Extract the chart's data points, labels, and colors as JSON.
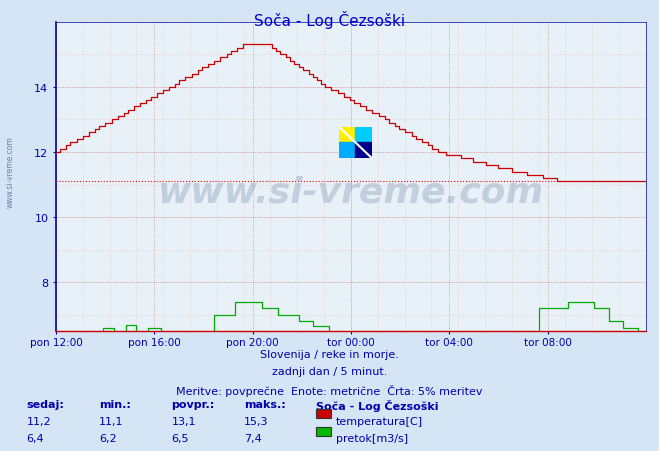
{
  "title": "Soča - Log Čezsoški",
  "background_color": "#d5e5f5",
  "plot_bg_color": "#e8f0f8",
  "title_color": "#0000cc",
  "axis_color": "#0000aa",
  "temp_color": "#cc0000",
  "flow_color": "#00aa00",
  "avg_line_value": 11.1,
  "avg_line_color": "#ff0000",
  "ylim_min": 6.5,
  "ylim_max": 16.0,
  "yticks": [
    8,
    10,
    12,
    14
  ],
  "xlabel_ticks": [
    "pon 12:00",
    "pon 16:00",
    "pon 20:00",
    "tor 00:00",
    "tor 04:00",
    "tor 08:00"
  ],
  "subtitle1": "Slovenija / reke in morje.",
  "subtitle2": "zadnji dan / 5 minut.",
  "subtitle3": "Meritve: povprečne  Enote: metrične  Črta: 5% meritev",
  "subtitle_color": "#0000aa",
  "legend_title": "Soča - Log Čezsoški",
  "legend_items": [
    "temperatura[C]",
    "pretok[m3/s]"
  ],
  "legend_colors": [
    "#cc0000",
    "#00bb00"
  ],
  "stats_headers": [
    "sedaj:",
    "min.:",
    "povpr.:",
    "maks.:"
  ],
  "stats_temp": [
    "11,2",
    "11,1",
    "13,1",
    "15,3"
  ],
  "stats_flow": [
    "6,4",
    "6,2",
    "6,5",
    "7,4"
  ],
  "watermark_text": "www.si-vreme.com",
  "watermark_color": "#1a3a6a",
  "side_text": "www.si-vreme.com"
}
